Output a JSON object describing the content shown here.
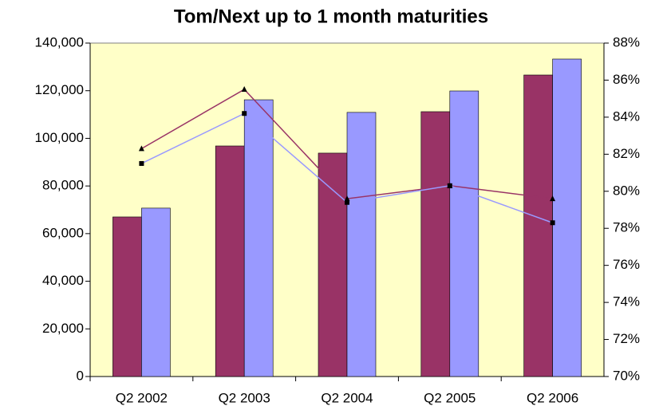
{
  "chart_data": {
    "type": "bar",
    "title": "Tom/Next up to 1 month maturities",
    "categories": [
      "Q2 2002",
      "Q2 2003",
      "Q2 2004",
      "Q2 2005",
      "Q2 2006"
    ],
    "series": [
      {
        "color": "#993366",
        "values": [
          67000,
          96800,
          93800,
          111200,
          126600
        ]
      },
      {
        "color": "#9999ff",
        "values": [
          70700,
          116200,
          110900,
          119900,
          133300
        ]
      },
      {
        "type": "line",
        "axis": "y2",
        "marker": "triangle",
        "color": "#993366",
        "values": [
          82.3,
          85.5,
          79.6,
          80.3,
          79.6
        ]
      },
      {
        "type": "line",
        "axis": "y2",
        "marker": "square",
        "color": "#9999ff",
        "values": [
          81.5,
          84.2,
          79.4,
          80.3,
          78.3
        ]
      }
    ],
    "ylim": [
      0,
      140000
    ],
    "yticks": [
      0,
      {
        "value": 20000,
        "label": "20,000"
      },
      {
        "value": 40000,
        "label": "40,000"
      },
      {
        "value": 60000,
        "label": "60,000"
      },
      {
        "value": 80000,
        "label": "80,000"
      },
      {
        "value": 100000,
        "label": "100,000"
      },
      {
        "value": 120000,
        "label": "120,000"
      },
      {
        "value": 140000,
        "label": "140,000"
      }
    ],
    "y2lim": [
      70,
      88
    ],
    "y2ticks": [
      {
        "value": 70,
        "label": "70%"
      },
      {
        "value": 72,
        "label": "72%"
      },
      {
        "value": 74,
        "label": "74%"
      },
      {
        "value": 76,
        "label": "76%"
      },
      {
        "value": 78,
        "label": "78%"
      },
      {
        "value": 80,
        "label": "80%"
      },
      {
        "value": 82,
        "label": "82%"
      },
      {
        "value": 84,
        "label": "84%"
      },
      {
        "value": 86,
        "label": "86%"
      },
      {
        "value": 88,
        "label": "88%"
      }
    ],
    "plot_background": "#ffffc8",
    "grid": false
  }
}
